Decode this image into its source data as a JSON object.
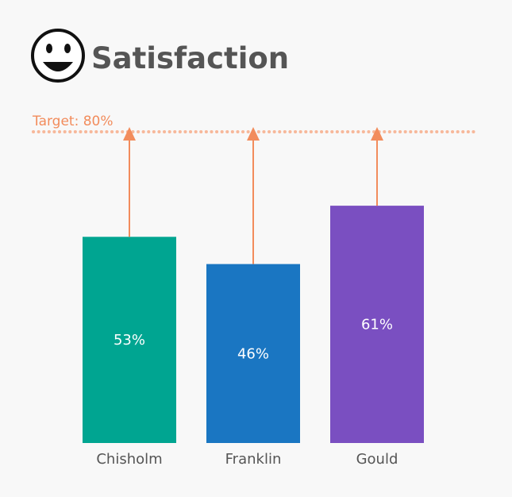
{
  "header": {
    "title": "Satisfaction",
    "icon": "smiley-face-icon"
  },
  "target": {
    "label": "Target: 80%",
    "value": 80
  },
  "colors": {
    "target": "#f28c5c",
    "text": "#555555",
    "bar_label": "#ffffff"
  },
  "chart_data": {
    "type": "bar",
    "title": "Satisfaction",
    "categories": [
      "Chisholm",
      "Franklin",
      "Gould"
    ],
    "values": [
      53,
      46,
      61
    ],
    "value_labels": [
      "53%",
      "46%",
      "61%"
    ],
    "colors": [
      "#00a591",
      "#1a76c2",
      "#7a4fc1"
    ],
    "ylim": [
      0,
      100
    ],
    "grid": false,
    "target": 80
  }
}
